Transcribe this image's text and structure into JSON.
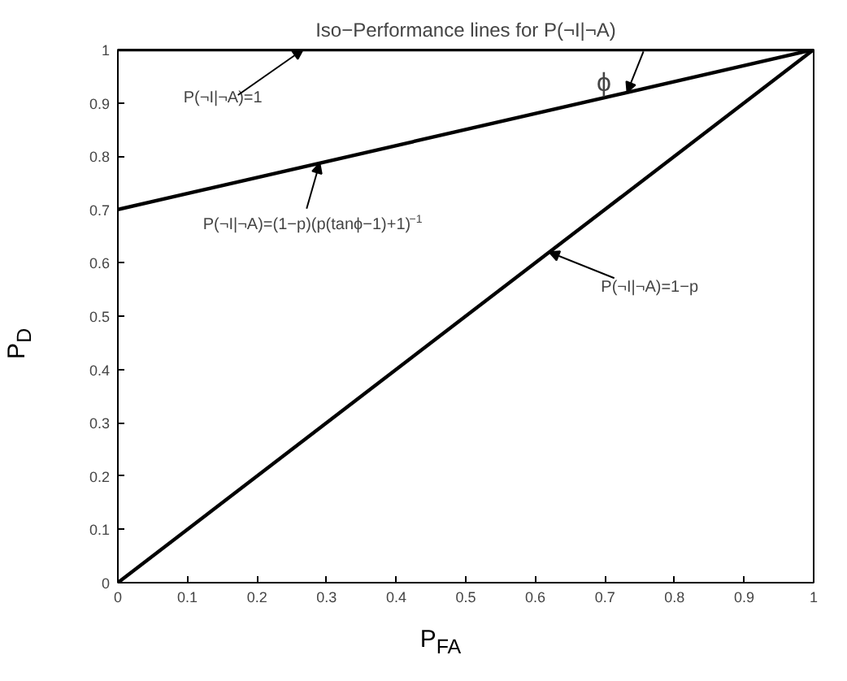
{
  "chart_data": {
    "type": "line",
    "title": "Iso−Performance lines for P(¬I|¬A)",
    "xlabel": "P$_{FA}$",
    "ylabel": "P$_{D}$",
    "x": [
      0,
      1
    ],
    "series": [
      {
        "color": "#000000",
        "values": [
          1,
          1
        ]
      },
      {
        "color": "#000000",
        "values": [
          0.7,
          1
        ]
      },
      {
        "color": "#000000",
        "values": [
          0,
          1
        ]
      }
    ],
    "annotations": [
      {
        "text": "P(¬I|¬A)=1",
        "x": 0.266,
        "y": 1
      },
      {
        "text": "P(¬I|¬A)=(1−p)(p(tanϕ−1)+1)$^{−1}$",
        "x": 0.29,
        "y": 0.787
      },
      {
        "text": "ϕ",
        "x": 0.732,
        "y": 0.92
      },
      {
        "text": "P(¬I|¬A)=1−p",
        "x": 0.62,
        "y": 0.62
      }
    ],
    "xlim": [
      0,
      1
    ],
    "ylim": [
      0,
      1
    ],
    "xticks": [
      0,
      0.1,
      0.2,
      0.3,
      0.4,
      0.5,
      0.6,
      0.7,
      0.8,
      0.9,
      1
    ],
    "yticks": [
      0,
      0.1,
      0.2,
      0.3,
      0.4,
      0.5,
      0.6,
      0.7,
      0.8,
      0.9,
      1
    ],
    "grid": false,
    "marker": "none",
    "line_style": "solid"
  }
}
